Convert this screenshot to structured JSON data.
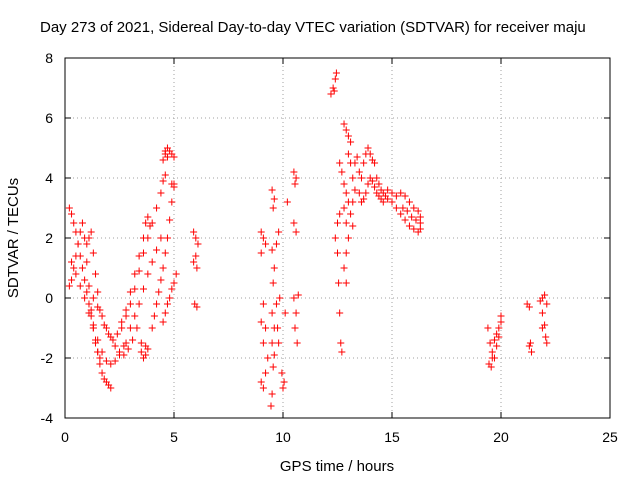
{
  "chart_data": {
    "type": "scatter",
    "title": "Day 273 of 2021, Sidereal Day-to-day VTEC variation (SDTVAR) for receiver maju",
    "xlabel": "GPS time / hours",
    "ylabel": "SDTVAR / TECUs",
    "xlim": [
      0,
      25
    ],
    "ylim": [
      -4,
      8
    ],
    "xticks": [
      0,
      5,
      10,
      15,
      20,
      25
    ],
    "yticks": [
      -4,
      -2,
      0,
      2,
      4,
      6,
      8
    ],
    "grid": true,
    "marker": "+",
    "color": "#ff0000",
    "series": [
      {
        "name": "SDTVAR",
        "points": [
          [
            0.2,
            3.0
          ],
          [
            0.3,
            2.8
          ],
          [
            0.4,
            2.5
          ],
          [
            0.5,
            2.2
          ],
          [
            0.6,
            1.8
          ],
          [
            0.7,
            1.4
          ],
          [
            0.8,
            1.0
          ],
          [
            0.9,
            0.6
          ],
          [
            1.0,
            0.2
          ],
          [
            1.1,
            -0.2
          ],
          [
            1.2,
            -0.6
          ],
          [
            1.3,
            -1.0
          ],
          [
            1.4,
            -1.4
          ],
          [
            1.5,
            -1.8
          ],
          [
            1.6,
            -2.2
          ],
          [
            1.7,
            -2.5
          ],
          [
            1.8,
            -2.7
          ],
          [
            1.9,
            -2.8
          ],
          [
            2.0,
            -2.9
          ],
          [
            2.1,
            -3.0
          ],
          [
            0.2,
            0.4
          ],
          [
            0.3,
            0.6
          ],
          [
            0.4,
            1.0
          ],
          [
            0.5,
            1.4
          ],
          [
            0.6,
            1.8
          ],
          [
            0.7,
            2.2
          ],
          [
            0.8,
            2.5
          ],
          [
            0.9,
            2.0
          ],
          [
            1.0,
            1.2
          ],
          [
            1.1,
            0.4
          ],
          [
            1.2,
            -0.4
          ],
          [
            1.3,
            -1.0
          ],
          [
            1.4,
            -1.5
          ],
          [
            1.5,
            -1.8
          ],
          [
            1.6,
            -2.0
          ],
          [
            0.3,
            1.2
          ],
          [
            0.5,
            0.8
          ],
          [
            0.7,
            0.4
          ],
          [
            0.9,
            0.0
          ],
          [
            1.1,
            -0.5
          ],
          [
            1.3,
            -0.9
          ],
          [
            1.5,
            -1.4
          ],
          [
            1.7,
            -1.8
          ],
          [
            1.9,
            -2.1
          ],
          [
            2.1,
            -2.2
          ],
          [
            2.3,
            -2.1
          ],
          [
            2.5,
            -1.9
          ],
          [
            2.7,
            -1.6
          ],
          [
            1.0,
            1.8
          ],
          [
            1.1,
            2.0
          ],
          [
            1.2,
            2.2
          ],
          [
            1.3,
            1.5
          ],
          [
            1.4,
            0.8
          ],
          [
            1.5,
            0.2
          ],
          [
            1.6,
            -0.4
          ],
          [
            1.8,
            -0.9
          ],
          [
            2.0,
            -1.2
          ],
          [
            2.2,
            -1.4
          ],
          [
            2.4,
            -1.2
          ],
          [
            2.6,
            -0.8
          ],
          [
            2.8,
            -0.4
          ],
          [
            1.3,
            0.0
          ],
          [
            1.5,
            -0.3
          ],
          [
            1.7,
            -0.6
          ],
          [
            1.9,
            -1.0
          ],
          [
            2.1,
            -1.3
          ],
          [
            2.3,
            -1.6
          ],
          [
            2.5,
            -1.8
          ],
          [
            2.7,
            -1.9
          ],
          [
            2.9,
            -1.7
          ],
          [
            3.1,
            -1.4
          ],
          [
            3.3,
            -1.0
          ],
          [
            2.6,
            -1.0
          ],
          [
            2.8,
            -0.6
          ],
          [
            3.0,
            -0.2
          ],
          [
            3.2,
            0.3
          ],
          [
            3.4,
            0.9
          ],
          [
            3.6,
            1.5
          ],
          [
            3.8,
            2.0
          ],
          [
            4.0,
            2.5
          ],
          [
            4.2,
            3.0
          ],
          [
            4.4,
            3.5
          ],
          [
            4.5,
            3.9
          ],
          [
            4.6,
            4.1
          ],
          [
            2.8,
            -1.5
          ],
          [
            3.0,
            -1.0
          ],
          [
            3.2,
            -0.6
          ],
          [
            3.4,
            -0.2
          ],
          [
            3.6,
            0.3
          ],
          [
            3.8,
            0.8
          ],
          [
            4.0,
            1.2
          ],
          [
            4.2,
            1.6
          ],
          [
            4.4,
            2.0
          ],
          [
            3.0,
            0.2
          ],
          [
            3.2,
            0.8
          ],
          [
            3.4,
            1.4
          ],
          [
            3.6,
            2.0
          ],
          [
            3.7,
            2.5
          ],
          [
            3.8,
            2.7
          ],
          [
            3.9,
            2.4
          ],
          [
            3.5,
            -1.8
          ],
          [
            3.6,
            -2.0
          ],
          [
            3.7,
            -1.9
          ],
          [
            3.8,
            -1.7
          ],
          [
            3.5,
            -1.5
          ],
          [
            3.7,
            -1.6
          ],
          [
            4.0,
            -1.0
          ],
          [
            4.1,
            -0.6
          ],
          [
            4.2,
            -0.2
          ],
          [
            4.3,
            0.2
          ],
          [
            4.4,
            0.6
          ],
          [
            4.5,
            1.0
          ],
          [
            4.6,
            1.5
          ],
          [
            4.7,
            2.0
          ],
          [
            4.8,
            2.6
          ],
          [
            4.9,
            3.2
          ],
          [
            5.0,
            3.7
          ],
          [
            4.5,
            4.6
          ],
          [
            4.6,
            4.9
          ],
          [
            4.7,
            5.0
          ],
          [
            4.8,
            4.9
          ],
          [
            4.9,
            4.8
          ],
          [
            5.0,
            4.7
          ],
          [
            4.6,
            4.8
          ],
          [
            4.7,
            4.7
          ],
          [
            4.9,
            3.8
          ],
          [
            5.0,
            3.8
          ],
          [
            4.5,
            -0.8
          ],
          [
            4.6,
            -0.5
          ],
          [
            4.7,
            -0.2
          ],
          [
            4.8,
            0.0
          ],
          [
            4.9,
            0.3
          ],
          [
            5.0,
            0.5
          ],
          [
            5.1,
            0.8
          ],
          [
            5.9,
            2.2
          ],
          [
            6.0,
            2.0
          ],
          [
            6.1,
            1.8
          ],
          [
            6.0,
            1.4
          ],
          [
            5.9,
            1.2
          ],
          [
            6.05,
            1.0
          ],
          [
            5.95,
            -0.2
          ],
          [
            6.05,
            -0.3
          ],
          [
            9.0,
            2.2
          ],
          [
            9.1,
            2.0
          ],
          [
            9.2,
            1.8
          ],
          [
            9.0,
            1.5
          ],
          [
            9.1,
            -0.2
          ],
          [
            9.0,
            -0.8
          ],
          [
            9.2,
            -1.0
          ],
          [
            9.1,
            -1.5
          ],
          [
            9.0,
            -2.8
          ],
          [
            9.1,
            -3.0
          ],
          [
            9.2,
            -2.5
          ],
          [
            9.3,
            -2.0
          ],
          [
            9.5,
            3.6
          ],
          [
            9.6,
            3.3
          ],
          [
            9.55,
            3.0
          ],
          [
            9.5,
            1.6
          ],
          [
            9.6,
            1.0
          ],
          [
            9.55,
            0.5
          ],
          [
            9.5,
            -0.5
          ],
          [
            9.6,
            -1.0
          ],
          [
            9.5,
            -1.5
          ],
          [
            9.6,
            -1.9
          ],
          [
            9.55,
            -2.3
          ],
          [
            9.5,
            -3.2
          ],
          [
            9.45,
            -3.6
          ],
          [
            9.7,
            -0.2
          ],
          [
            9.75,
            -1.0
          ],
          [
            9.8,
            -1.5
          ],
          [
            9.85,
            0.0
          ],
          [
            9.8,
            2.2
          ],
          [
            9.7,
            1.8
          ],
          [
            10.0,
            -3.0
          ],
          [
            10.05,
            -2.8
          ],
          [
            9.95,
            -2.5
          ],
          [
            10.1,
            -0.5
          ],
          [
            10.2,
            3.2
          ],
          [
            10.5,
            4.2
          ],
          [
            10.6,
            4.0
          ],
          [
            10.55,
            3.8
          ],
          [
            10.5,
            2.5
          ],
          [
            10.6,
            2.2
          ],
          [
            10.5,
            0.0
          ],
          [
            10.6,
            -0.5
          ],
          [
            10.55,
            -1.0
          ],
          [
            10.65,
            -1.5
          ],
          [
            10.7,
            0.1
          ],
          [
            12.2,
            6.8
          ],
          [
            12.3,
            7.0
          ],
          [
            12.4,
            7.3
          ],
          [
            12.45,
            7.5
          ],
          [
            12.35,
            6.9
          ],
          [
            12.5,
            2.5
          ],
          [
            12.6,
            2.8
          ],
          [
            12.4,
            2.0
          ],
          [
            12.5,
            1.5
          ],
          [
            12.55,
            0.5
          ],
          [
            12.6,
            -0.5
          ],
          [
            12.65,
            -1.5
          ],
          [
            12.7,
            -1.8
          ],
          [
            12.6,
            4.5
          ],
          [
            12.7,
            4.2
          ],
          [
            12.8,
            3.8
          ],
          [
            12.9,
            3.5
          ],
          [
            13.0,
            3.2
          ],
          [
            12.8,
            3.0
          ],
          [
            12.9,
            2.5
          ],
          [
            13.0,
            2.0
          ],
          [
            12.9,
            1.5
          ],
          [
            12.8,
            1.0
          ],
          [
            12.9,
            0.5
          ],
          [
            12.8,
            5.8
          ],
          [
            12.9,
            5.6
          ],
          [
            13.0,
            5.4
          ],
          [
            13.1,
            5.2
          ],
          [
            13.0,
            4.8
          ],
          [
            13.1,
            4.5
          ],
          [
            13.2,
            4.0
          ],
          [
            13.3,
            3.6
          ],
          [
            13.2,
            3.2
          ],
          [
            13.1,
            2.8
          ],
          [
            13.2,
            2.4
          ],
          [
            13.3,
            4.5
          ],
          [
            13.4,
            4.7
          ],
          [
            13.5,
            4.2
          ],
          [
            13.6,
            4.0
          ],
          [
            13.7,
            4.5
          ],
          [
            13.8,
            4.8
          ],
          [
            13.9,
            5.0
          ],
          [
            14.0,
            4.8
          ],
          [
            14.1,
            4.6
          ],
          [
            14.2,
            4.5
          ],
          [
            14.3,
            4.0
          ],
          [
            14.4,
            3.8
          ],
          [
            14.5,
            3.6
          ],
          [
            14.6,
            3.5
          ],
          [
            14.7,
            3.4
          ],
          [
            14.8,
            3.3
          ],
          [
            13.5,
            3.5
          ],
          [
            13.6,
            3.2
          ],
          [
            13.7,
            3.3
          ],
          [
            13.8,
            3.5
          ],
          [
            13.9,
            3.8
          ],
          [
            14.0,
            4.0
          ],
          [
            14.1,
            3.9
          ],
          [
            14.2,
            3.7
          ],
          [
            14.3,
            3.5
          ],
          [
            14.4,
            3.4
          ],
          [
            14.5,
            3.3
          ],
          [
            14.6,
            3.2
          ],
          [
            14.8,
            3.6
          ],
          [
            15.0,
            3.5
          ],
          [
            15.2,
            3.4
          ],
          [
            15.4,
            3.5
          ],
          [
            15.6,
            3.4
          ],
          [
            15.8,
            3.2
          ],
          [
            16.0,
            3.0
          ],
          [
            16.2,
            2.9
          ],
          [
            16.3,
            2.7
          ],
          [
            15.0,
            3.2
          ],
          [
            15.2,
            3.0
          ],
          [
            15.4,
            2.8
          ],
          [
            15.6,
            2.6
          ],
          [
            15.8,
            2.4
          ],
          [
            16.0,
            2.3
          ],
          [
            16.2,
            2.2
          ],
          [
            16.3,
            2.3
          ],
          [
            15.5,
            3.0
          ],
          [
            15.7,
            2.9
          ],
          [
            15.9,
            2.7
          ],
          [
            16.1,
            2.6
          ],
          [
            16.3,
            2.5
          ],
          [
            19.4,
            -1.0
          ],
          [
            19.5,
            -1.5
          ],
          [
            19.6,
            -2.0
          ],
          [
            19.55,
            -2.3
          ],
          [
            19.45,
            -2.2
          ],
          [
            19.6,
            -1.8
          ],
          [
            19.7,
            -1.4
          ],
          [
            19.8,
            -1.2
          ],
          [
            19.9,
            -1.0
          ],
          [
            20.0,
            -0.8
          ],
          [
            19.7,
            -2.0
          ],
          [
            19.8,
            -1.6
          ],
          [
            19.9,
            -1.3
          ],
          [
            20.0,
            -0.6
          ],
          [
            21.2,
            -0.2
          ],
          [
            21.3,
            -0.3
          ],
          [
            21.35,
            -1.5
          ],
          [
            21.4,
            -1.8
          ],
          [
            21.3,
            -1.6
          ],
          [
            21.8,
            -0.1
          ],
          [
            21.9,
            0.0
          ],
          [
            22.0,
            0.1
          ],
          [
            22.1,
            -0.2
          ],
          [
            21.9,
            -0.5
          ],
          [
            22.0,
            -0.9
          ],
          [
            21.9,
            -1.0
          ],
          [
            22.05,
            -1.3
          ],
          [
            22.1,
            -1.5
          ]
        ]
      }
    ]
  }
}
